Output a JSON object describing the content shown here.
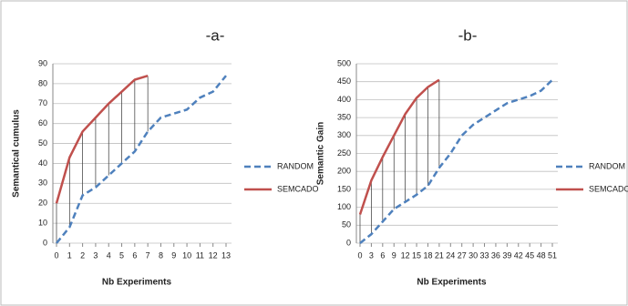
{
  "chart_data": [
    {
      "type": "line",
      "title": "-a-",
      "xlabel": "Nb Experiments",
      "ylabel": "Semantical cumulus",
      "x": [
        0,
        1,
        2,
        3,
        4,
        5,
        6,
        7,
        8,
        9,
        10,
        11,
        12,
        13
      ],
      "series": [
        {
          "name": "RANDOM",
          "color": "#4f81bd",
          "dash": true,
          "values": [
            0,
            8,
            24,
            28,
            34,
            40,
            46,
            56,
            63,
            65,
            67,
            73,
            76,
            84
          ]
        },
        {
          "name": "SEMCADO",
          "color": "#c0504d",
          "dash": false,
          "values": [
            20,
            43,
            56,
            63,
            70,
            76,
            82,
            84,
            null,
            null,
            null,
            null,
            null,
            null
          ]
        }
      ],
      "xlim": [
        0,
        13
      ],
      "xticks": [
        0,
        1,
        2,
        3,
        4,
        5,
        6,
        7,
        8,
        9,
        10,
        11,
        12,
        13
      ],
      "ylim": [
        0,
        90
      ],
      "yticks": [
        0,
        10,
        20,
        30,
        40,
        50,
        60,
        70,
        80,
        90
      ],
      "grid": true,
      "legend": "right",
      "hatch": true
    },
    {
      "type": "line",
      "title": "-b-",
      "xlabel": "Nb Experiments",
      "ylabel": "Semantic Gain",
      "x": [
        0,
        3,
        6,
        9,
        12,
        15,
        18,
        21,
        24,
        27,
        30,
        33,
        36,
        39,
        42,
        45,
        48,
        51
      ],
      "series": [
        {
          "name": "RANDOM",
          "color": "#4f81bd",
          "dash": true,
          "values": [
            0,
            25,
            60,
            95,
            115,
            135,
            160,
            210,
            250,
            300,
            330,
            350,
            370,
            390,
            400,
            410,
            425,
            455
          ]
        },
        {
          "name": "SEMCADO",
          "color": "#c0504d",
          "dash": false,
          "values": [
            80,
            175,
            240,
            300,
            360,
            405,
            435,
            455,
            null,
            null,
            null,
            null,
            null,
            null,
            null,
            null,
            null,
            null
          ]
        }
      ],
      "xlim": [
        0,
        51
      ],
      "xticks": [
        0,
        3,
        6,
        9,
        12,
        15,
        18,
        21,
        24,
        27,
        30,
        33,
        36,
        39,
        42,
        45,
        48,
        51
      ],
      "ylim": [
        0,
        500
      ],
      "yticks": [
        0,
        50,
        100,
        150,
        200,
        250,
        300,
        350,
        400,
        450,
        500
      ],
      "grid": true,
      "legend": "right",
      "hatch": true
    }
  ]
}
